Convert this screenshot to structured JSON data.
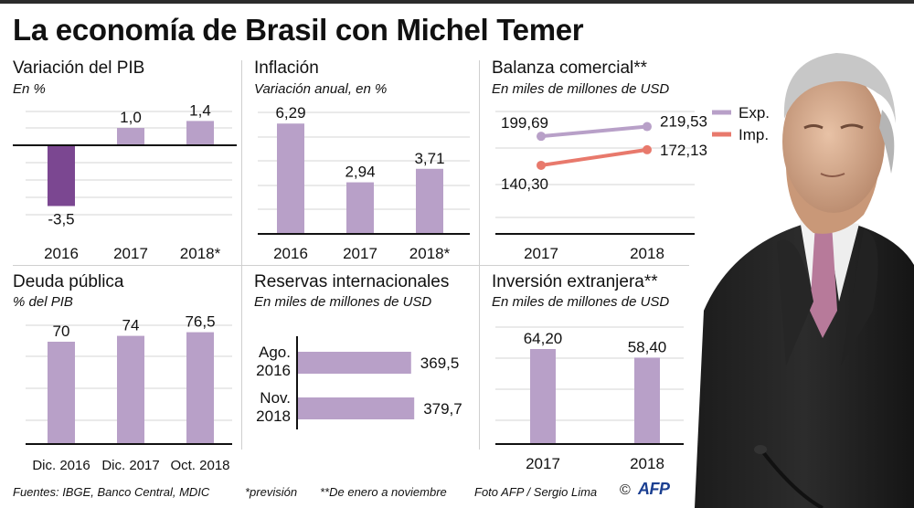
{
  "title": "La economía de Brasil con Michel Temer",
  "colors": {
    "bar": "#b8a0c8",
    "negative_bar": "#7b4791",
    "exp_line": "#b8a0c8",
    "imp_line": "#e8796c"
  },
  "panels": {
    "pib": {
      "title": "Variación del PIB",
      "subtitle": "En %"
    },
    "inflacion": {
      "title": "Inflación",
      "subtitle": "Variación anual, en %"
    },
    "balanza": {
      "title": "Balanza comercial**",
      "subtitle": "En miles de millones de USD"
    },
    "deuda": {
      "title": "Deuda pública",
      "subtitle": "% del PIB"
    },
    "reservas": {
      "title": "Reservas internacionales",
      "subtitle": "En miles de millones de USD"
    },
    "inversion": {
      "title": "Inversión extranjera**",
      "subtitle": "En miles de millones de USD"
    }
  },
  "chart_data": [
    {
      "id": "pib",
      "type": "bar",
      "title": "Variación del PIB",
      "ylabel": "En %",
      "categories": [
        "2016",
        "2017",
        "2018*"
      ],
      "values": [
        -3.5,
        1.0,
        1.4
      ],
      "labels": [
        "-3,5",
        "1,0",
        "1,4"
      ],
      "ylim": [
        -3.5,
        1.4
      ]
    },
    {
      "id": "inflacion",
      "type": "bar",
      "title": "Inflación",
      "ylabel": "Variación anual, en %",
      "categories": [
        "2016",
        "2017",
        "2018*"
      ],
      "values": [
        6.29,
        2.94,
        3.71
      ],
      "labels": [
        "6,29",
        "2,94",
        "3,71"
      ],
      "ylim": [
        0,
        7
      ]
    },
    {
      "id": "balanza",
      "type": "line",
      "title": "Balanza comercial**",
      "ylabel": "En miles de millones de USD",
      "categories": [
        "2017",
        "2018"
      ],
      "series": [
        {
          "name": "Exp.",
          "values": [
            199.69,
            219.53
          ],
          "labels": [
            "199,69",
            "219,53"
          ]
        },
        {
          "name": "Imp.",
          "values": [
            140.3,
            172.13
          ],
          "labels": [
            "140,30",
            "172,13"
          ]
        }
      ],
      "legend": "right",
      "ylim": [
        0,
        260
      ]
    },
    {
      "id": "deuda",
      "type": "bar",
      "title": "Deuda pública",
      "ylabel": "% del PIB",
      "categories": [
        "Dic. 2016",
        "Dic. 2017",
        "Oct. 2018"
      ],
      "values": [
        70,
        74,
        76.5
      ],
      "labels": [
        "70",
        "74",
        "76,5"
      ],
      "ylim": [
        0,
        80
      ]
    },
    {
      "id": "reservas",
      "type": "bar",
      "orientation": "horizontal",
      "title": "Reservas internacionales",
      "ylabel": "En miles de millones de USD",
      "categories": [
        [
          "Ago.",
          "2016"
        ],
        [
          "Nov.",
          "2018"
        ]
      ],
      "values": [
        369.5,
        379.7
      ],
      "labels": [
        "369,5",
        "379,7"
      ],
      "ylim": [
        0,
        380
      ]
    },
    {
      "id": "inversion",
      "type": "bar",
      "title": "Inversión extranjera**",
      "ylabel": "En miles de millones de USD",
      "categories": [
        "2017",
        "2018"
      ],
      "values": [
        64.2,
        58.4
      ],
      "labels": [
        "64,20",
        "58,40"
      ],
      "ylim": [
        0,
        70
      ]
    }
  ],
  "footer": {
    "sources": "Fuentes: IBGE, Banco Central, MDIC",
    "note1": "*previsión",
    "note2": "**De enero a noviembre",
    "photo_credit": "Foto AFP / Sergio Lima",
    "copyright": "©",
    "logo": "AFP"
  }
}
